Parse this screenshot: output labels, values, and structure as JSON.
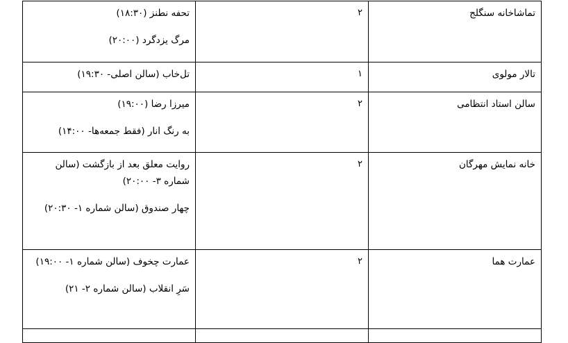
{
  "rows": [
    {
      "venue": "تماشاخانه سنگلج",
      "count": "۲",
      "shows": [
        "تحفه نطنز (۱۸:۳۰)",
        "مرگ یزدگرد (۲۰:۰۰)"
      ]
    },
    {
      "venue": "تالار مولوی",
      "count": "۱",
      "shows": [
        "تل‌خاب (سالن اصلی- ۱۹:۳۰)"
      ]
    },
    {
      "venue": "سالن استاد انتظامی",
      "count": "۲",
      "shows": [
        "میرزا رضا (۱۹:۰۰)",
        "به رنگ انار (فقط جمعه‌ها- ۱۴:۰۰)"
      ]
    },
    {
      "venue": "خانه نمایش مهرگان",
      "count": "۲",
      "shows": [
        "روایت معلق بعد از بازگشت (سالن شماره ۳- ۲۰:۰۰)",
        "چهار صندوق (سالن شماره ۱- ۲۰:۳۰)"
      ]
    },
    {
      "venue": "عمارت هما",
      "count": "۲",
      "shows": [
        "عمارت چخوف (سالن شماره ۱- ۱۹:۰۰)",
        "سَرِ انقلاب (سالن شماره ۲- ۲۱)"
      ]
    }
  ]
}
